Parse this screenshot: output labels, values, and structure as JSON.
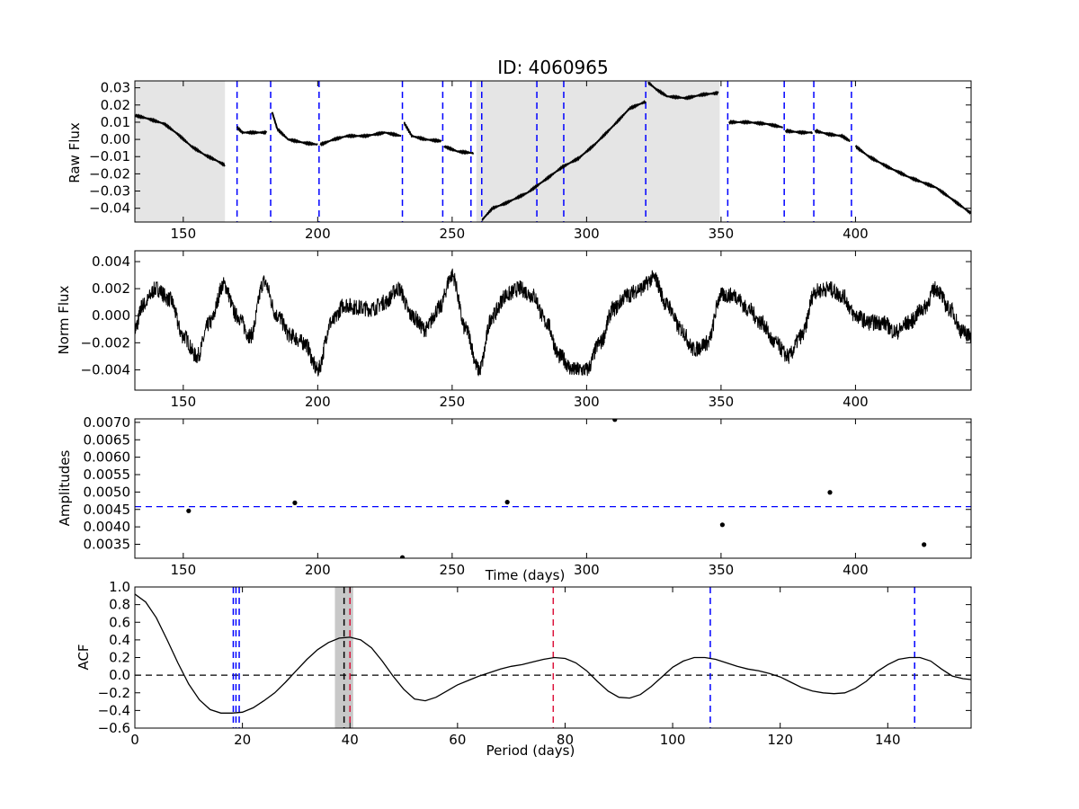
{
  "chart_data": [
    {
      "type": "line",
      "title": "ID: 4060965",
      "ylabel": "Raw Flux",
      "xlabel": "",
      "xlim": [
        132,
        443
      ],
      "ylim": [
        -0.048,
        0.034
      ],
      "xticks": [
        150,
        200,
        250,
        300,
        350,
        400
      ],
      "yticks": [
        -0.04,
        -0.03,
        -0.02,
        -0.01,
        0.0,
        0.01,
        0.02,
        0.03
      ],
      "ytick_labels": [
        "−0.04",
        "−0.03",
        "−0.02",
        "−0.01",
        "0.00",
        "0.01",
        "0.02",
        "0.03"
      ],
      "shaded_regions": [
        [
          132,
          165.5
        ],
        [
          259,
          349.5
        ]
      ],
      "shade_color": "#e5e5e5",
      "vlines": [
        170,
        182.5,
        200.5,
        231.5,
        246.5,
        257,
        261,
        281.5,
        291.5,
        322,
        352.5,
        373.5,
        384.5,
        398.5
      ],
      "vline_color": "#0000ff",
      "line_color": "#000000",
      "segments": [
        {
          "x": [
            132,
            137,
            143,
            148,
            153,
            158,
            162,
            165.5
          ],
          "y": [
            0.014,
            0.012,
            0.009,
            0.003,
            -0.004,
            -0.009,
            -0.012,
            -0.015
          ]
        },
        {
          "x": [
            170,
            172,
            177,
            181
          ],
          "y": [
            0.007,
            0.004,
            0.004,
            0.004
          ]
        },
        {
          "x": [
            183,
            185,
            189,
            195,
            200
          ],
          "y": [
            0.016,
            0.006,
            0.0,
            -0.002,
            -0.003
          ]
        },
        {
          "x": [
            201,
            206,
            211,
            218,
            225,
            231
          ],
          "y": [
            -0.003,
            0.0,
            0.002,
            0.002,
            0.004,
            0.002
          ]
        },
        {
          "x": [
            232,
            235,
            240,
            246
          ],
          "y": [
            0.01,
            0.002,
            0.0,
            -0.001
          ]
        },
        {
          "x": [
            247,
            252,
            258
          ],
          "y": [
            -0.004,
            -0.007,
            -0.008
          ]
        },
        {
          "x": [
            261,
            265,
            270,
            278,
            285,
            291,
            297,
            303,
            310,
            316,
            322
          ],
          "y": [
            -0.047,
            -0.04,
            -0.037,
            -0.031,
            -0.023,
            -0.016,
            -0.011,
            -0.003,
            0.008,
            0.018,
            0.022
          ]
        },
        {
          "x": [
            323,
            326,
            330,
            337,
            343,
            349
          ],
          "y": [
            0.033,
            0.029,
            0.025,
            0.024,
            0.026,
            0.027
          ]
        },
        {
          "x": [
            353,
            360,
            367,
            373
          ],
          "y": [
            0.01,
            0.01,
            0.009,
            0.007
          ]
        },
        {
          "x": [
            374,
            380,
            384
          ],
          "y": [
            0.005,
            0.004,
            0.004
          ]
        },
        {
          "x": [
            385,
            390,
            395,
            398
          ],
          "y": [
            0.005,
            0.003,
            0.002,
            -0.001
          ]
        },
        {
          "x": [
            400,
            405,
            412,
            420,
            430,
            437,
            443
          ],
          "y": [
            -0.004,
            -0.01,
            -0.016,
            -0.022,
            -0.028,
            -0.036,
            -0.043
          ]
        }
      ]
    },
    {
      "type": "line",
      "title": "",
      "ylabel": "Norm Flux",
      "xlabel": "",
      "xlim": [
        132,
        443
      ],
      "ylim": [
        -0.0055,
        0.0048
      ],
      "xticks": [
        150,
        200,
        250,
        300,
        350,
        400
      ],
      "yticks": [
        -0.004,
        -0.002,
        0.0,
        0.002,
        0.004
      ],
      "ytick_labels": [
        "−0.004",
        "−0.002",
        "0.000",
        "0.002",
        "0.004"
      ],
      "line_color": "#000000",
      "x": [
        132,
        135,
        140,
        145,
        150,
        155,
        160,
        165,
        170,
        175,
        180,
        185,
        190,
        195,
        200,
        205,
        210,
        215,
        220,
        225,
        230,
        235,
        240,
        245,
        250,
        255,
        260,
        265,
        270,
        275,
        280,
        285,
        290,
        295,
        300,
        305,
        310,
        315,
        320,
        325,
        330,
        335,
        340,
        345,
        350,
        355,
        360,
        365,
        370,
        375,
        380,
        385,
        390,
        395,
        400,
        405,
        410,
        415,
        420,
        425,
        430,
        435,
        440,
        443
      ],
      "y": [
        -0.001,
        0.0008,
        0.002,
        0.0012,
        -0.0015,
        -0.003,
        -0.0005,
        0.0023,
        0.0,
        -0.0015,
        0.0025,
        0.0,
        -0.0015,
        -0.002,
        -0.004,
        -0.0005,
        0.0008,
        0.0006,
        0.0005,
        0.001,
        0.002,
        0.0,
        -0.001,
        0.0005,
        0.003,
        -0.001,
        -0.004,
        0.0,
        0.0015,
        0.002,
        0.0015,
        -0.0005,
        -0.003,
        -0.004,
        -0.004,
        -0.002,
        0.0005,
        0.0015,
        0.002,
        0.0028,
        0.0008,
        -0.001,
        -0.0025,
        -0.002,
        0.0015,
        0.0015,
        0.0005,
        -0.0005,
        -0.002,
        -0.003,
        -0.0015,
        0.0018,
        0.002,
        0.0015,
        0.0,
        -0.0005,
        -0.0005,
        -0.0012,
        -0.0005,
        0.0005,
        0.002,
        0.0005,
        -0.0012,
        -0.0015
      ],
      "noise_amplitude": 0.0006
    },
    {
      "type": "scatter",
      "title": "",
      "ylabel": "Amplitudes",
      "xlabel": "Time (days)",
      "xlim": [
        132,
        443
      ],
      "ylim": [
        0.0031,
        0.0071
      ],
      "xticks": [
        150,
        200,
        250,
        300,
        350,
        400
      ],
      "yticks": [
        0.0035,
        0.004,
        0.0045,
        0.005,
        0.0055,
        0.006,
        0.0065,
        0.007
      ],
      "ytick_labels": [
        "0.0035",
        "0.0040",
        "0.0045",
        "0.0050",
        "0.0055",
        "0.0060",
        "0.0065",
        "0.0070"
      ],
      "hline": 0.00458,
      "hline_color": "#0000ff",
      "marker_color": "#000000",
      "x": [
        152,
        191.5,
        231.5,
        270.5,
        310.5,
        350.5,
        390.5,
        425.5
      ],
      "y": [
        0.00446,
        0.00469,
        0.00312,
        0.00471,
        0.00708,
        0.00406,
        0.00499,
        0.00349
      ]
    },
    {
      "type": "line",
      "title": "",
      "ylabel": "ACF",
      "xlabel": "Period (days)",
      "xlim": [
        0,
        155.5
      ],
      "ylim": [
        -0.6,
        1.0
      ],
      "xticks": [
        0,
        20,
        40,
        60,
        80,
        100,
        120,
        140
      ],
      "yticks": [
        -0.6,
        -0.4,
        -0.2,
        0.0,
        0.2,
        0.4,
        0.6,
        0.8,
        1.0
      ],
      "ytick_labels": [
        "−0.6",
        "−0.4",
        "−0.2",
        "0.0",
        "0.2",
        "0.4",
        "0.6",
        "0.8",
        "1.0"
      ],
      "hline": 0.0,
      "hline_color": "#000000",
      "shaded_regions": [
        [
          37.2,
          40.6
        ]
      ],
      "shade_color": "#c8c8c8",
      "blue_vlines": [
        18.3,
        18.8,
        19.4,
        107,
        145
      ],
      "black_vline": 38.9,
      "red_vlines": [
        40,
        77.8
      ],
      "vline_blue_color": "#0000ff",
      "vline_red_color": "#dc143c",
      "line_color": "#000000",
      "x": [
        0,
        2,
        4,
        6,
        8,
        10,
        12,
        14,
        16,
        18,
        20,
        22,
        24,
        26,
        28,
        30,
        32,
        34,
        36,
        38,
        40,
        42,
        44,
        46,
        48,
        50,
        52,
        54,
        56,
        58,
        60,
        62,
        64,
        66,
        68,
        70,
        72,
        74,
        76,
        78,
        80,
        82,
        84,
        86,
        88,
        90,
        92,
        94,
        96,
        98,
        100,
        102,
        104,
        106,
        108,
        110,
        112,
        114,
        116,
        118,
        120,
        122,
        124,
        126,
        128,
        130,
        132,
        134,
        136,
        138,
        140,
        142,
        144,
        146,
        148,
        150,
        152,
        154,
        155.5
      ],
      "y": [
        0.92,
        0.83,
        0.65,
        0.4,
        0.14,
        -0.1,
        -0.28,
        -0.39,
        -0.43,
        -0.43,
        -0.42,
        -0.37,
        -0.29,
        -0.2,
        -0.08,
        0.05,
        0.18,
        0.29,
        0.37,
        0.42,
        0.43,
        0.4,
        0.31,
        0.16,
        -0.01,
        -0.16,
        -0.27,
        -0.29,
        -0.25,
        -0.18,
        -0.11,
        -0.06,
        -0.01,
        0.03,
        0.07,
        0.1,
        0.12,
        0.15,
        0.18,
        0.2,
        0.19,
        0.14,
        0.05,
        -0.07,
        -0.18,
        -0.25,
        -0.26,
        -0.22,
        -0.13,
        -0.02,
        0.09,
        0.16,
        0.2,
        0.2,
        0.18,
        0.14,
        0.1,
        0.07,
        0.05,
        0.02,
        -0.02,
        -0.08,
        -0.14,
        -0.18,
        -0.2,
        -0.21,
        -0.2,
        -0.15,
        -0.07,
        0.04,
        0.12,
        0.18,
        0.2,
        0.2,
        0.16,
        0.07,
        -0.01,
        -0.04,
        -0.05
      ]
    }
  ]
}
